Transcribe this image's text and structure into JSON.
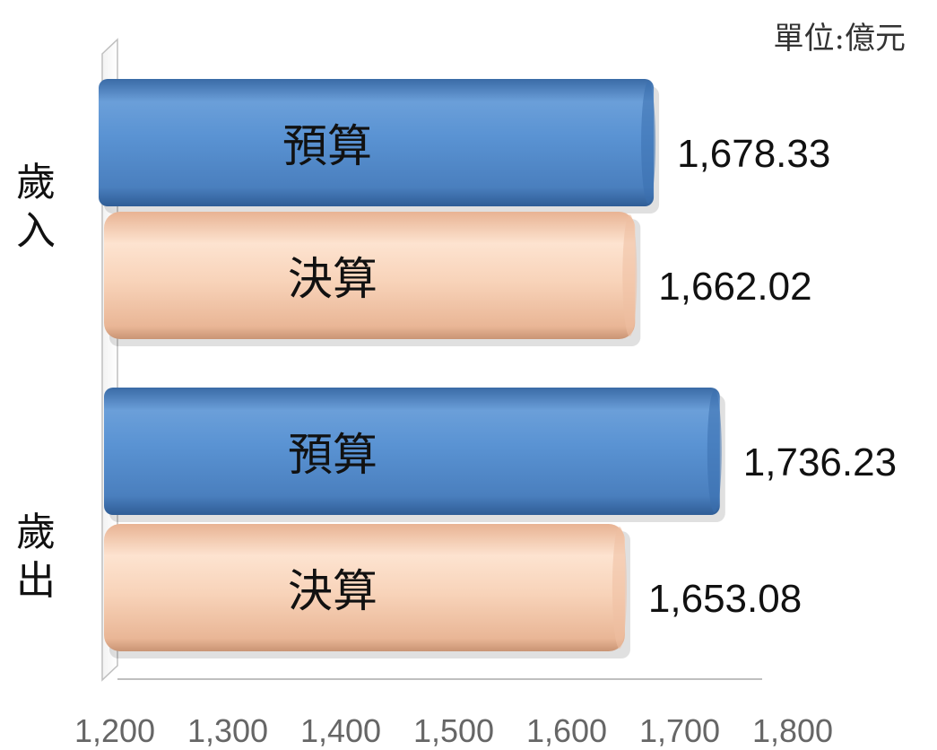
{
  "unit_label": "單位:億元",
  "chart_data": {
    "type": "bar",
    "orientation": "horizontal",
    "style": "3d-cylinder",
    "unit": "單位:億元",
    "xlim": [
      1200,
      1800
    ],
    "ticks": [
      "1,200",
      "1,300",
      "1,400",
      "1,500",
      "1,600",
      "1,700",
      "1,800"
    ],
    "tick_values": [
      1200,
      1300,
      1400,
      1500,
      1600,
      1700,
      1800
    ],
    "groups": [
      {
        "name": "歲入",
        "bars": [
          {
            "label": "預算",
            "value": 1678.33,
            "value_label": "1,678.33",
            "color": "#4f86c6"
          },
          {
            "label": "決算",
            "value": 1662.02,
            "value_label": "1,662.02",
            "color": "#f5c9a8"
          }
        ]
      },
      {
        "name": "歲出",
        "bars": [
          {
            "label": "預算",
            "value": 1736.23,
            "value_label": "1,736.23",
            "color": "#4f86c6"
          },
          {
            "label": "決算",
            "value": 1653.08,
            "value_label": "1,653.08",
            "color": "#f5c9a8"
          }
        ]
      }
    ]
  }
}
